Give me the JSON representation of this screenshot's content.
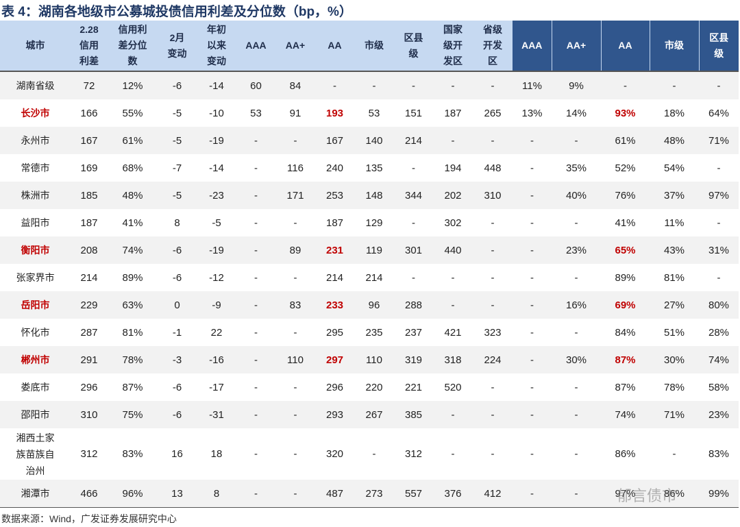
{
  "title": "表 4：湖南各地级市公募城投债信用利差及分位数（bp，%）",
  "table": {
    "headers": [
      "城市",
      "2.28\n信用\n利差",
      "信用利\n差分位\n数",
      "2月\n变动",
      "年初\n以来\n变动",
      "AAA",
      "AA+",
      "AA",
      "市级",
      "区县\n级",
      "国家\n级开\n发区",
      "省级\n开发\n区",
      "AAA",
      "AA+",
      "AA",
      "市级",
      "区县\n级"
    ],
    "rows": [
      [
        "湖南省级",
        "72",
        "12%",
        "-6",
        "-14",
        "60",
        "84",
        "-",
        "-",
        "-",
        "-",
        "-",
        "11%",
        "9%",
        "-",
        "-",
        "-"
      ],
      [
        "长沙市",
        "166",
        "55%",
        "-5",
        "-10",
        "53",
        "91",
        "193",
        "53",
        "151",
        "187",
        "265",
        "13%",
        "14%",
        "93%",
        "18%",
        "64%"
      ],
      [
        "永州市",
        "167",
        "61%",
        "-5",
        "-19",
        "-",
        "-",
        "167",
        "140",
        "214",
        "-",
        "-",
        "-",
        "-",
        "61%",
        "48%",
        "71%"
      ],
      [
        "常德市",
        "169",
        "68%",
        "-7",
        "-14",
        "-",
        "116",
        "240",
        "135",
        "-",
        "194",
        "448",
        "-",
        "35%",
        "52%",
        "54%",
        "-"
      ],
      [
        "株洲市",
        "185",
        "48%",
        "-5",
        "-23",
        "-",
        "171",
        "253",
        "148",
        "344",
        "202",
        "310",
        "-",
        "40%",
        "76%",
        "37%",
        "97%"
      ],
      [
        "益阳市",
        "187",
        "41%",
        "8",
        "-5",
        "-",
        "-",
        "187",
        "129",
        "-",
        "302",
        "-",
        "-",
        "-",
        "41%",
        "11%",
        "-"
      ],
      [
        "衡阳市",
        "208",
        "74%",
        "-6",
        "-19",
        "-",
        "89",
        "231",
        "119",
        "301",
        "440",
        "-",
        "-",
        "23%",
        "65%",
        "43%",
        "31%"
      ],
      [
        "张家界市",
        "214",
        "89%",
        "-6",
        "-12",
        "-",
        "-",
        "214",
        "214",
        "-",
        "-",
        "-",
        "-",
        "-",
        "89%",
        "81%",
        "-"
      ],
      [
        "岳阳市",
        "229",
        "63%",
        "0",
        "-9",
        "-",
        "83",
        "233",
        "96",
        "288",
        "-",
        "-",
        "-",
        "16%",
        "69%",
        "27%",
        "80%"
      ],
      [
        "怀化市",
        "287",
        "81%",
        "-1",
        "22",
        "-",
        "-",
        "295",
        "235",
        "237",
        "421",
        "323",
        "-",
        "-",
        "84%",
        "51%",
        "28%"
      ],
      [
        "郴州市",
        "291",
        "78%",
        "-3",
        "-16",
        "-",
        "110",
        "297",
        "110",
        "319",
        "318",
        "224",
        "-",
        "30%",
        "87%",
        "30%",
        "74%"
      ],
      [
        "娄底市",
        "296",
        "87%",
        "-6",
        "-17",
        "-",
        "-",
        "296",
        "220",
        "221",
        "520",
        "-",
        "-",
        "-",
        "87%",
        "78%",
        "58%"
      ],
      [
        "邵阳市",
        "310",
        "75%",
        "-6",
        "-31",
        "-",
        "-",
        "293",
        "267",
        "385",
        "-",
        "-",
        "-",
        "-",
        "74%",
        "71%",
        "23%"
      ],
      [
        "湘西土家\n族苗族自\n治州",
        "312",
        "83%",
        "16",
        "18",
        "-",
        "-",
        "320",
        "-",
        "312",
        "-",
        "-",
        "-",
        "-",
        "86%",
        "-",
        "83%"
      ],
      [
        "湘潭市",
        "466",
        "96%",
        "13",
        "8",
        "-",
        "-",
        "487",
        "273",
        "557",
        "376",
        "412",
        "-",
        "-",
        "97%",
        "86%",
        "99%"
      ]
    ]
  },
  "source": "数据来源：Wind，广发证券发展研究中心",
  "watermark": "郁言债市"
}
